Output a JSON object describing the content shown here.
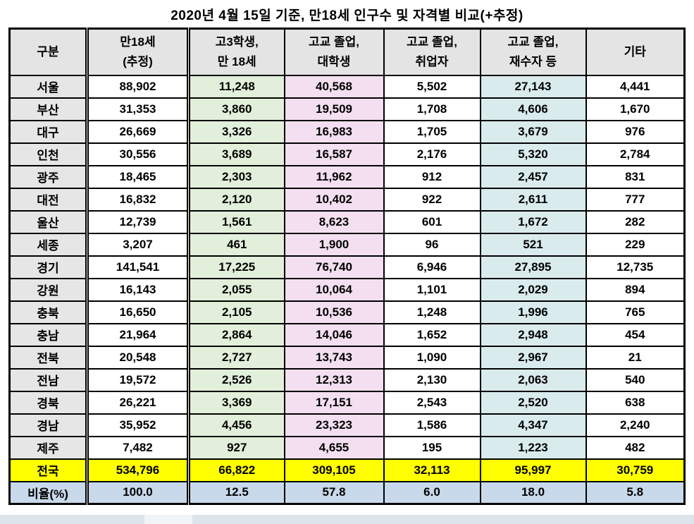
{
  "title": "2020년 4월 15일 기준, 만18세 인구수 및 자격별 비교(+추정)",
  "table": {
    "columns": [
      {
        "id": "region",
        "lines": [
          "구분"
        ],
        "width": 110,
        "bg": "#e6e6e6"
      },
      {
        "id": "age18",
        "lines": [
          "만18세",
          "(추정)"
        ],
        "width": 144,
        "bg": "#ffffff"
      },
      {
        "id": "hs-senior",
        "lines": [
          "고3학생,",
          "만 18세"
        ],
        "width": 136,
        "bg": "#e2efda"
      },
      {
        "id": "college",
        "lines": [
          "고교 졸업,",
          "대학생"
        ],
        "width": 141,
        "bg": "#f3dff0"
      },
      {
        "id": "employed",
        "lines": [
          "고교 졸업,",
          "취업자"
        ],
        "width": 137,
        "bg": "#ffffff"
      },
      {
        "id": "retaker",
        "lines": [
          "고교 졸업,",
          "재수자 등"
        ],
        "width": 150,
        "bg": "#daebee"
      },
      {
        "id": "etc",
        "lines": [
          "기타"
        ],
        "width": 140,
        "bg": "#ffffff"
      }
    ],
    "rows": [
      {
        "region": "서울",
        "values": [
          "88,902",
          "11,248",
          "40,568",
          "5,502",
          "27,143",
          "4,441"
        ]
      },
      {
        "region": "부산",
        "values": [
          "31,353",
          "3,860",
          "19,509",
          "1,708",
          "4,606",
          "1,670"
        ]
      },
      {
        "region": "대구",
        "values": [
          "26,669",
          "3,326",
          "16,983",
          "1,705",
          "3,679",
          "976"
        ]
      },
      {
        "region": "인천",
        "values": [
          "30,556",
          "3,689",
          "16,587",
          "2,176",
          "5,320",
          "2,784"
        ]
      },
      {
        "region": "광주",
        "values": [
          "18,465",
          "2,303",
          "11,962",
          "912",
          "2,457",
          "831"
        ]
      },
      {
        "region": "대전",
        "values": [
          "16,832",
          "2,120",
          "10,402",
          "922",
          "2,611",
          "777"
        ]
      },
      {
        "region": "울산",
        "values": [
          "12,739",
          "1,561",
          "8,623",
          "601",
          "1,672",
          "282"
        ]
      },
      {
        "region": "세종",
        "values": [
          "3,207",
          "461",
          "1,900",
          "96",
          "521",
          "229"
        ]
      },
      {
        "region": "경기",
        "values": [
          "141,541",
          "17,225",
          "76,740",
          "6,946",
          "27,895",
          "12,735"
        ]
      },
      {
        "region": "강원",
        "values": [
          "16,143",
          "2,055",
          "10,064",
          "1,101",
          "2,029",
          "894"
        ]
      },
      {
        "region": "충북",
        "values": [
          "16,650",
          "2,105",
          "10,536",
          "1,248",
          "1,996",
          "765"
        ]
      },
      {
        "region": "충남",
        "values": [
          "21,964",
          "2,864",
          "14,046",
          "1,652",
          "2,948",
          "454"
        ]
      },
      {
        "region": "전북",
        "values": [
          "20,548",
          "2,727",
          "13,743",
          "1,090",
          "2,967",
          "21"
        ]
      },
      {
        "region": "전남",
        "values": [
          "19,572",
          "2,526",
          "12,313",
          "2,130",
          "2,063",
          "540"
        ]
      },
      {
        "region": "경북",
        "values": [
          "26,221",
          "3,369",
          "17,151",
          "2,543",
          "2,520",
          "638"
        ]
      },
      {
        "region": "경남",
        "values": [
          "35,952",
          "4,456",
          "23,323",
          "1,586",
          "4,347",
          "2,240"
        ]
      },
      {
        "region": "제주",
        "values": [
          "7,482",
          "927",
          "4,655",
          "195",
          "1,223",
          "482"
        ]
      }
    ],
    "total_row": {
      "region": "전국",
      "values": [
        "534,796",
        "66,822",
        "309,105",
        "32,113",
        "95,997",
        "30,759"
      ]
    },
    "ratio_row": {
      "region": "비율(%)",
      "values": [
        "100.0",
        "12.5",
        "57.8",
        "6.0",
        "18.0",
        "5.8"
      ]
    }
  },
  "colors": {
    "header_bg": "#e4e4e4",
    "region_col_bg": "#e6e6e6",
    "green_col": "#e2efda",
    "pink_col": "#f3dff0",
    "cyan_col": "#daebee",
    "total_row_bg": "#ffff00",
    "ratio_row_bg": "#c9d9ec",
    "border": "#000000"
  }
}
